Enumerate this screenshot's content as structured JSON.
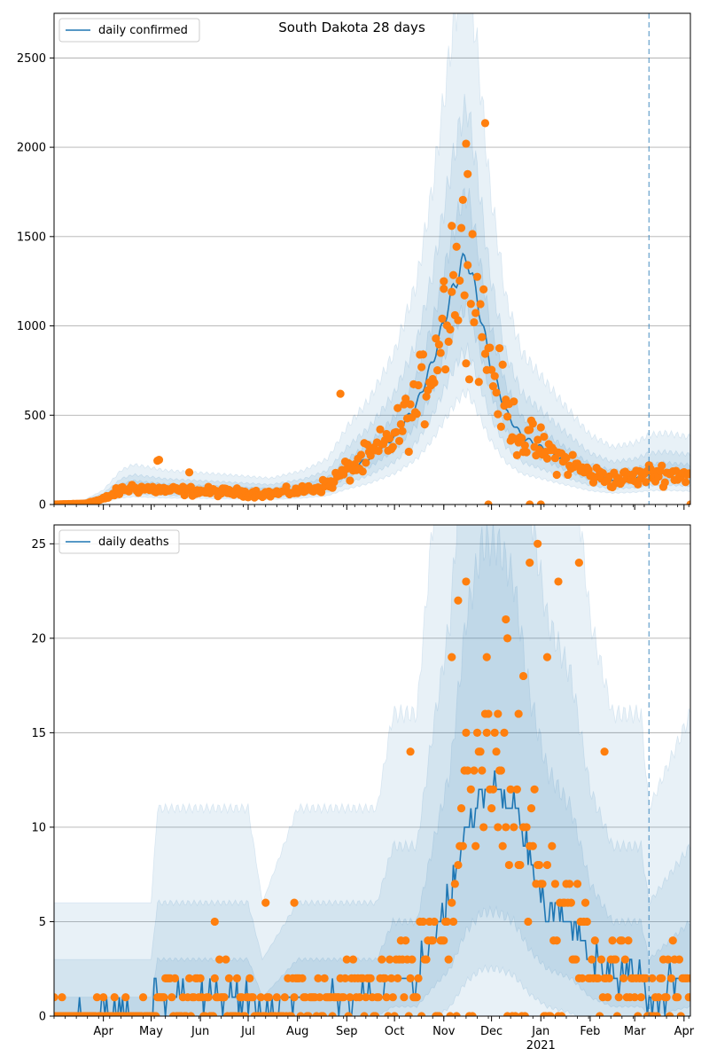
{
  "figure": {
    "title": "South Dakota 28 days"
  },
  "colors": {
    "model_line": "#1f77b4",
    "band": "#1f77b4",
    "observed_points": "#ff7f0e",
    "grid": "#b0b0b0",
    "forecast_line": "#1f77b4"
  },
  "chart_data": [
    {
      "type": "line",
      "panel": "top",
      "title": "South Dakota 28 days",
      "legend": {
        "entries": [
          "daily confirmed"
        ],
        "placement": "top-left"
      },
      "x_axis": {
        "type": "date",
        "range": [
          "2020-03-01",
          "2021-04-05"
        ],
        "tick_labels": [],
        "minor_ticks": "weekly"
      },
      "y_axis": {
        "range": [
          0,
          2750
        ],
        "ticks": [
          0,
          500,
          1000,
          1500,
          2000,
          2500
        ],
        "grid": true
      },
      "forecast_start": "2021-03-10",
      "series": [
        {
          "name": "daily confirmed",
          "kind": "model_median",
          "knots": [
            [
              "2020-03-01",
              0
            ],
            [
              "2020-03-20",
              5
            ],
            [
              "2020-04-01",
              30
            ],
            [
              "2020-04-12",
              80
            ],
            [
              "2020-04-20",
              95
            ],
            [
              "2020-05-10",
              80
            ],
            [
              "2020-06-15",
              70
            ],
            [
              "2020-07-15",
              60
            ],
            [
              "2020-08-05",
              80
            ],
            [
              "2020-08-20",
              110
            ],
            [
              "2020-09-01",
              190
            ],
            [
              "2020-09-15",
              260
            ],
            [
              "2020-10-01",
              380
            ],
            [
              "2020-10-15",
              560
            ],
            [
              "2020-10-25",
              800
            ],
            [
              "2020-11-05",
              1150
            ],
            [
              "2020-11-12",
              1340
            ],
            [
              "2020-11-16",
              1380
            ],
            [
              "2020-11-22",
              1150
            ],
            [
              "2020-11-30",
              800
            ],
            [
              "2020-12-10",
              520
            ],
            [
              "2020-12-20",
              380
            ],
            [
              "2021-01-01",
              320
            ],
            [
              "2021-01-15",
              250
            ],
            [
              "2021-02-01",
              170
            ],
            [
              "2021-02-15",
              140
            ],
            [
              "2021-03-01",
              150
            ],
            [
              "2021-03-10",
              170
            ],
            [
              "2021-03-20",
              175
            ],
            [
              "2021-04-05",
              165
            ]
          ],
          "bands": [
            {
              "label": "50%",
              "factor": 1.25
            },
            {
              "label": "80%",
              "factor": 1.6
            },
            {
              "label": "95%",
              "factor": 2.2
            }
          ]
        },
        {
          "name": "observed",
          "kind": "scatter",
          "noise": 0.28,
          "outliers": [
            [
              "2020-05-05",
              245
            ],
            [
              "2020-05-06",
              250
            ],
            [
              "2020-05-25",
              180
            ],
            [
              "2020-08-28",
              620
            ],
            [
              "2020-11-15",
              2020
            ],
            [
              "2020-11-16",
              1850
            ],
            [
              "2020-11-27",
              2135
            ],
            [
              "2020-11-06",
              1560
            ],
            [
              "2020-11-01",
              1250
            ],
            [
              "2020-11-29",
              0
            ],
            [
              "2021-01-01",
              0
            ],
            [
              "2020-12-25",
              0
            ],
            [
              "2021-04-05",
              0
            ]
          ]
        }
      ]
    },
    {
      "type": "line",
      "panel": "bottom",
      "title": "",
      "legend": {
        "entries": [
          "daily deaths"
        ],
        "placement": "top-left"
      },
      "x_axis": {
        "type": "date",
        "range": [
          "2020-03-01",
          "2021-04-05"
        ],
        "tick_labels": [
          {
            "date": "2020-04-01",
            "label": "Apr"
          },
          {
            "date": "2020-05-01",
            "label": "May"
          },
          {
            "date": "2020-06-01",
            "label": "Jun"
          },
          {
            "date": "2020-07-01",
            "label": "Jul"
          },
          {
            "date": "2020-08-01",
            "label": "Aug"
          },
          {
            "date": "2020-09-01",
            "label": "Sep"
          },
          {
            "date": "2020-10-01",
            "label": "Oct"
          },
          {
            "date": "2020-11-01",
            "label": "Nov"
          },
          {
            "date": "2020-12-01",
            "label": "Dec"
          },
          {
            "date": "2021-01-01",
            "label": "Jan",
            "sublabel": "2021"
          },
          {
            "date": "2021-02-01",
            "label": "Feb"
          },
          {
            "date": "2021-03-01",
            "label": "Mar"
          },
          {
            "date": "2021-04-01",
            "label": "Apr"
          }
        ],
        "minor_ticks": "weekly"
      },
      "y_axis": {
        "range": [
          0,
          26
        ],
        "ticks": [
          0,
          5,
          10,
          15,
          20,
          25
        ],
        "grid": true
      },
      "forecast_start": "2021-03-10",
      "series": [
        {
          "name": "daily deaths",
          "kind": "model_median",
          "knots": [
            [
              "2020-03-01",
              0
            ],
            [
              "2020-05-01",
              0
            ],
            [
              "2020-05-05",
              1
            ],
            [
              "2020-07-01",
              1
            ],
            [
              "2020-07-10",
              0
            ],
            [
              "2020-08-01",
              1
            ],
            [
              "2020-09-20",
              1
            ],
            [
              "2020-09-30",
              2
            ],
            [
              "2020-10-15",
              2
            ],
            [
              "2020-10-25",
              4
            ],
            [
              "2020-11-05",
              6
            ],
            [
              "2020-11-15",
              10
            ],
            [
              "2020-11-25",
              12
            ],
            [
              "2020-12-05",
              12
            ],
            [
              "2020-12-15",
              11
            ],
            [
              "2020-12-25",
              8
            ],
            [
              "2021-01-05",
              6
            ],
            [
              "2021-01-20",
              5
            ],
            [
              "2021-02-01",
              3
            ],
            [
              "2021-02-15",
              2
            ],
            [
              "2021-03-05",
              2
            ],
            [
              "2021-03-10",
              1
            ],
            [
              "2021-04-05",
              2
            ]
          ],
          "bands": [
            {
              "label": "50%",
              "factor": 2.0,
              "floor": 1
            },
            {
              "label": "80%",
              "factor": 3.0,
              "floor": 3
            },
            {
              "label": "95%",
              "factor": 5.0,
              "floor": 6
            }
          ]
        },
        {
          "name": "observed",
          "kind": "scatter",
          "discrete": true,
          "outliers": [
            [
              "2020-03-06",
              1
            ],
            [
              "2020-06-10",
              5
            ],
            [
              "2020-07-12",
              6
            ],
            [
              "2020-07-30",
              6
            ],
            [
              "2020-11-10",
              22
            ],
            [
              "2020-11-15",
              23
            ],
            [
              "2020-12-25",
              24
            ],
            [
              "2020-12-30",
              25
            ],
            [
              "2021-01-12",
              23
            ],
            [
              "2021-01-25",
              24
            ],
            [
              "2020-12-10",
              21
            ],
            [
              "2020-12-11",
              20
            ],
            [
              "2020-11-06",
              19
            ],
            [
              "2020-11-28",
              19
            ],
            [
              "2021-01-05",
              19
            ],
            [
              "2020-12-21",
              18
            ],
            [
              "2020-12-05",
              16
            ],
            [
              "2020-12-18",
              16
            ],
            [
              "2021-02-10",
              14
            ],
            [
              "2020-10-11",
              14
            ]
          ]
        }
      ]
    }
  ]
}
